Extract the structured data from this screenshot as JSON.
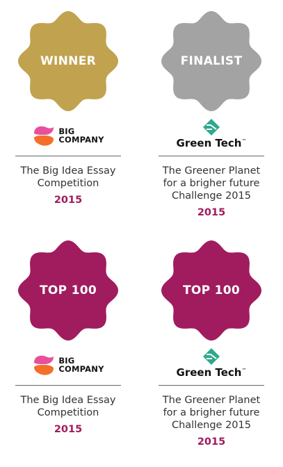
{
  "colors": {
    "winner": "#c1a24f",
    "finalist": "#a3a3a3",
    "top100": "#a01c5e",
    "year": "#a01c5e",
    "greentech": "#2ea98d"
  },
  "cards": [
    {
      "badge": "WINNER",
      "badge_color": "winner",
      "logo": "big-company",
      "logo_lines": [
        "BIG",
        "COMPANY"
      ],
      "title_lines": [
        "The Big Idea Essay",
        "Competition"
      ],
      "year": "2015"
    },
    {
      "badge": "FINALIST",
      "badge_color": "finalist",
      "logo": "green-tech",
      "logo_text": "Green Tech",
      "logo_tm": "™",
      "title_lines": [
        "The Greener Planet",
        "for a brigher future",
        "Challenge 2015"
      ],
      "year": "2015"
    },
    {
      "badge": "TOP 100",
      "badge_color": "top100",
      "logo": "big-company",
      "logo_lines": [
        "BIG",
        "COMPANY"
      ],
      "title_lines": [
        "The Big Idea Essay",
        "Competition"
      ],
      "year": "2015"
    },
    {
      "badge": "TOP 100",
      "badge_color": "top100",
      "logo": "green-tech",
      "logo_text": "Green Tech",
      "logo_tm": "™",
      "title_lines": [
        "The Greener Planet",
        "for a brigher future",
        "Challenge 2015"
      ],
      "year": "2015"
    }
  ]
}
